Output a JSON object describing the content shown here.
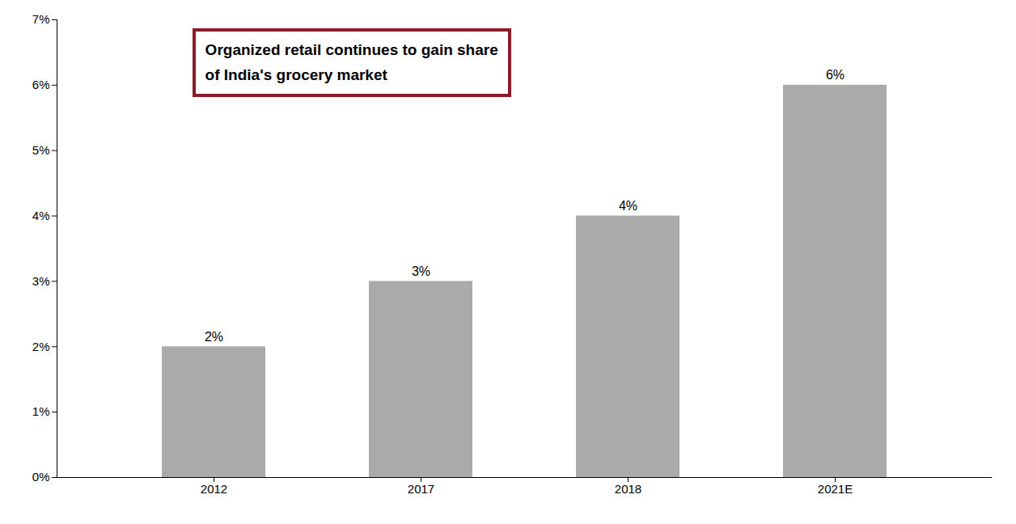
{
  "chart_data": {
    "type": "bar",
    "categories": [
      "2012",
      "2017",
      "2018",
      "2021E"
    ],
    "values": [
      2,
      3,
      4,
      6
    ],
    "value_labels": [
      "2%",
      "3%",
      "4%",
      "6%"
    ],
    "data_labels": true,
    "color": "#aaaaaa",
    "ylim": [
      0,
      7
    ],
    "yticks": [
      {
        "value": 0,
        "label": "0%"
      },
      {
        "value": 1,
        "label": "1%"
      },
      {
        "value": 2,
        "label": "2%"
      },
      {
        "value": 3,
        "label": "3%"
      },
      {
        "value": 4,
        "label": "4%"
      },
      {
        "value": 5,
        "label": "5%"
      },
      {
        "value": 6,
        "label": "6%"
      },
      {
        "value": 7,
        "label": "7%"
      }
    ],
    "grid": false,
    "annotations": [
      {
        "text": "Organized retail continues to gain share\nof India's grocery market",
        "color": "#8b1a2a"
      }
    ]
  }
}
